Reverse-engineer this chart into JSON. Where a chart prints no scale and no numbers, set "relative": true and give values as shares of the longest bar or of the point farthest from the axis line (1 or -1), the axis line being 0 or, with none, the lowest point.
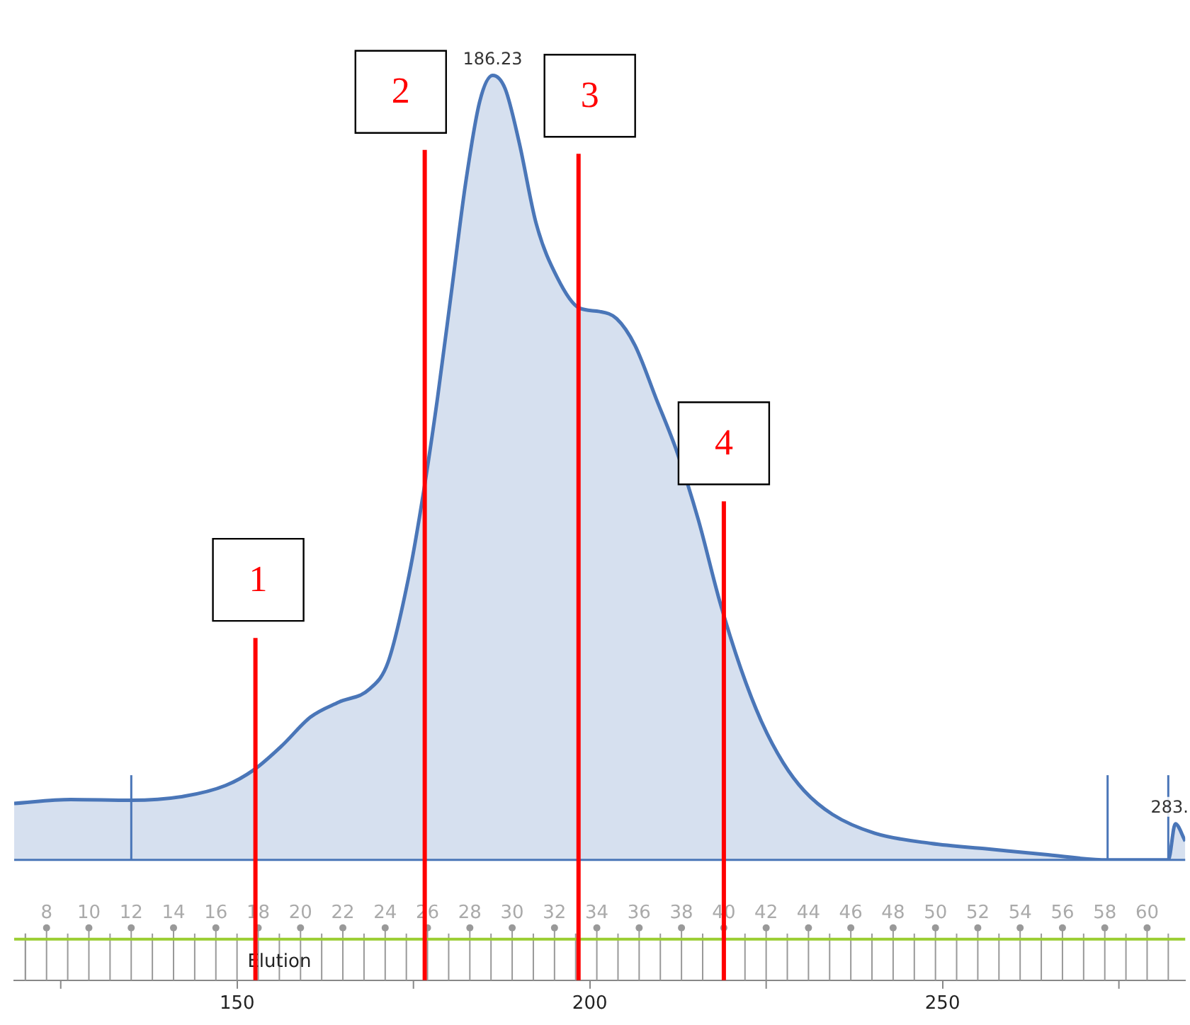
{
  "chart_data": {
    "type": "area",
    "relative": true,
    "x2label": "Elution",
    "x": [
      118.4,
      126.4,
      135,
      142.4,
      148.4,
      152.4,
      156.4,
      160.4,
      164.4,
      168.8,
      171.4,
      174.4,
      176.4,
      178.4,
      180.4,
      182.4,
      184.4,
      186.23,
      188,
      190,
      192.4,
      195.4,
      198.4,
      201.4,
      203.8,
      206.4,
      209.4,
      212.4,
      215.4,
      218.4,
      221.4,
      224.4,
      227.4,
      230.4,
      234.4,
      240.4,
      248.4,
      256.4,
      264.4,
      273.4,
      282,
      283,
      284.4
    ],
    "series": [
      {
        "color": "#4a76b8",
        "values": [
          0.072,
          0.077,
          0.076,
          0.081,
          0.095,
          0.115,
          0.146,
          0.182,
          0.201,
          0.218,
          0.252,
          0.364,
          0.467,
          0.588,
          0.725,
          0.863,
          0.967,
          1,
          0.983,
          0.914,
          0.811,
          0.742,
          0.704,
          0.699,
          0.69,
          0.656,
          0.588,
          0.519,
          0.433,
          0.33,
          0.244,
          0.175,
          0.124,
          0.088,
          0.058,
          0.034,
          0.021,
          0.014,
          0.007,
          0,
          0,
          0.046,
          0.024
        ]
      }
    ],
    "xlim": [
      118.4,
      284.4
    ],
    "xticks": [
      150,
      200,
      250
    ],
    "x2lim": [
      6.47,
      61.8
    ],
    "x2ticks": [
      8,
      10,
      12,
      14,
      16,
      18,
      20,
      22,
      24,
      26,
      28,
      30,
      32,
      34,
      36,
      38,
      40,
      42,
      44,
      46,
      48,
      50,
      52,
      54,
      56,
      58,
      60
    ],
    "ref_lines": [
      {
        "axis": "x",
        "value": 152.6,
        "color": "#ff0000"
      },
      {
        "axis": "x",
        "value": 176.6,
        "color": "#ff0000"
      },
      {
        "axis": "x",
        "value": 198.4,
        "color": "#ff0000"
      },
      {
        "axis": "x",
        "value": 219,
        "color": "#ff0000"
      },
      {
        "axis": "x",
        "value": 135,
        "color": "#4a76b8"
      },
      {
        "axis": "x",
        "value": 273.4,
        "color": "#4a76b8"
      },
      {
        "axis": "x",
        "value": 282,
        "color": "#4a76b8"
      }
    ],
    "annotations": [
      {
        "text": "186.23",
        "x": 186.23,
        "y": 1
      },
      {
        "text": "283.",
        "x": 283,
        "y": 0.046
      },
      "1",
      "2",
      "3",
      "4"
    ],
    "grid": false,
    "legend": false
  }
}
